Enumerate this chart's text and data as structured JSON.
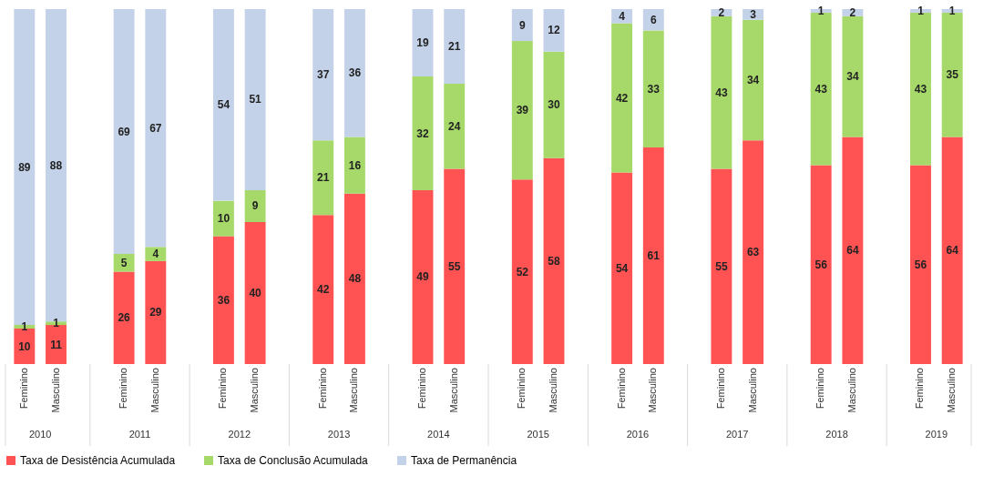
{
  "chart_data": {
    "type": "bar",
    "stacked": true,
    "data_labels": true,
    "legend": "bottom",
    "categories": [
      "Feminino",
      "Masculino",
      "Feminino",
      "Masculino",
      "Feminino",
      "Masculino",
      "Feminino",
      "Masculino",
      "Feminino",
      "Masculino",
      "Feminino",
      "Masculino",
      "Feminino",
      "Masculino",
      "Feminino",
      "Masculino",
      "Feminino",
      "Masculino",
      "Feminino",
      "Masculino"
    ],
    "annotations": [
      "2010",
      "2011",
      "2012",
      "2013",
      "2014",
      "2015",
      "2016",
      "2017",
      "2018",
      "2019"
    ],
    "series": [
      {
        "name": "Taxa de Desistência Acumulada",
        "color": "#ff5252",
        "values": [
          10,
          11,
          26,
          29,
          36,
          40,
          42,
          48,
          49,
          55,
          52,
          58,
          54,
          61,
          55,
          63,
          56,
          64,
          56,
          64
        ]
      },
      {
        "name": "Taxa de Conclusão Acumulada",
        "color": "#a6d96a",
        "values": [
          1,
          1,
          5,
          4,
          10,
          9,
          21,
          16,
          32,
          24,
          39,
          30,
          42,
          33,
          43,
          34,
          43,
          34,
          43,
          35
        ]
      },
      {
        "name": "Taxa de Permanência",
        "color": "#c3d2e8",
        "values": [
          89,
          88,
          69,
          67,
          54,
          51,
          37,
          36,
          19,
          21,
          9,
          12,
          4,
          6,
          2,
          3,
          1,
          2,
          1,
          1
        ]
      }
    ]
  }
}
